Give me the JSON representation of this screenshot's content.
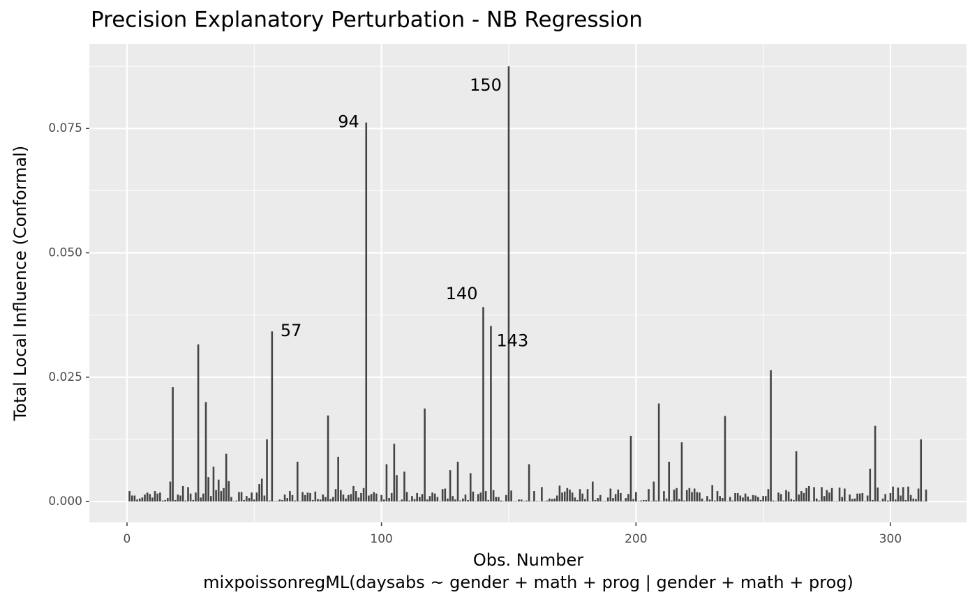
{
  "chart_data": {
    "type": "bar",
    "title": "Precision Explanatory Perturbation - NB Regression",
    "x_label": "Obs. Number",
    "caption": "mixpoissonregML(daysabs ~ gender + math + prog | gender + math + prog)",
    "y_label": "Total Local Influence (Conformal)",
    "color": "#444444",
    "grid": true,
    "xlim": [
      -14.8,
      329.9
    ],
    "ylim": [
      -0.0042,
      0.092
    ],
    "xticks": [
      0,
      100,
      200,
      300
    ],
    "yticks": [
      {
        "value": 0,
        "label": "0.000"
      },
      0.025,
      {
        "value": 0.05,
        "label": "0.050"
      },
      0.075
    ],
    "labels": [
      {
        "text": "57",
        "x": 57
      },
      {
        "text": "94",
        "x": 94
      },
      {
        "text": "140",
        "x": 140
      },
      {
        "text": "143",
        "x": 143
      },
      {
        "text": "150",
        "x": 150
      }
    ],
    "x": [
      1,
      2,
      3,
      4,
      5,
      6,
      7,
      8,
      9,
      10,
      11,
      12,
      13,
      14,
      15,
      16,
      17,
      18,
      19,
      20,
      21,
      22,
      23,
      24,
      25,
      26,
      27,
      28,
      29,
      30,
      31,
      32,
      33,
      34,
      35,
      36,
      37,
      38,
      39,
      40,
      41,
      42,
      43,
      44,
      45,
      46,
      47,
      48,
      49,
      50,
      51,
      52,
      53,
      54,
      55,
      56,
      57,
      58,
      59,
      60,
      61,
      62,
      63,
      64,
      65,
      66,
      67,
      68,
      69,
      70,
      71,
      72,
      73,
      74,
      75,
      76,
      77,
      78,
      79,
      80,
      81,
      82,
      83,
      84,
      85,
      86,
      87,
      88,
      89,
      90,
      91,
      92,
      93,
      94,
      95,
      96,
      97,
      98,
      99,
      100,
      101,
      102,
      103,
      104,
      105,
      106,
      107,
      108,
      109,
      110,
      111,
      112,
      113,
      114,
      115,
      116,
      117,
      118,
      119,
      120,
      121,
      122,
      123,
      124,
      125,
      126,
      127,
      128,
      129,
      130,
      131,
      132,
      133,
      134,
      135,
      136,
      137,
      138,
      139,
      140,
      141,
      142,
      143,
      144,
      145,
      146,
      147,
      148,
      149,
      150,
      151,
      152,
      153,
      154,
      155,
      156,
      157,
      158,
      159,
      160,
      161,
      162,
      163,
      164,
      165,
      166,
      167,
      168,
      169,
      170,
      171,
      172,
      173,
      174,
      175,
      176,
      177,
      178,
      179,
      180,
      181,
      182,
      183,
      184,
      185,
      186,
      187,
      188,
      189,
      190,
      191,
      192,
      193,
      194,
      195,
      196,
      197,
      198,
      199,
      200,
      201,
      202,
      203,
      204,
      205,
      206,
      207,
      208,
      209,
      210,
      211,
      212,
      213,
      214,
      215,
      216,
      217,
      218,
      219,
      220,
      221,
      222,
      223,
      224,
      225,
      226,
      227,
      228,
      229,
      230,
      231,
      232,
      233,
      234,
      235,
      236,
      237,
      238,
      239,
      240,
      241,
      242,
      243,
      244,
      245,
      246,
      247,
      248,
      249,
      250,
      251,
      252,
      253,
      254,
      255,
      256,
      257,
      258,
      259,
      260,
      261,
      262,
      263,
      264,
      265,
      266,
      267,
      268,
      269,
      270,
      271,
      272,
      273,
      274,
      275,
      276,
      277,
      278,
      279,
      280,
      281,
      282,
      283,
      284,
      285,
      286,
      287,
      288,
      289,
      290,
      291,
      292,
      293,
      294,
      295,
      296,
      297,
      298,
      299,
      300,
      301,
      302,
      303,
      304,
      305,
      306,
      307,
      308,
      309,
      310,
      311,
      312,
      313,
      314
    ],
    "values": [
      0.0021,
      0.0012,
      0.0012,
      0.0004,
      0.0006,
      0.0008,
      0.0014,
      0.0018,
      0.0015,
      0.0008,
      0.0021,
      0.0016,
      0.0018,
      0.0002,
      0.0003,
      0.0007,
      0.004,
      0.023,
      0.0003,
      0.0014,
      0.0012,
      0.0031,
      0.0002,
      0.0029,
      0.0016,
      0.0003,
      0.0018,
      0.0316,
      0.0008,
      0.0016,
      0.02,
      0.0049,
      0.0011,
      0.007,
      0.0023,
      0.0044,
      0.0021,
      0.0027,
      0.0096,
      0.0041,
      0.0009,
      0.0001,
      0.0002,
      0.0019,
      0.0019,
      0.0003,
      0.0011,
      0.0007,
      0.0018,
      0.0004,
      0.0018,
      0.0035,
      0.0046,
      0.0012,
      0.0125,
      0.0002,
      0.0342,
      0.0001,
      0.0001,
      0.0004,
      0.0003,
      0.0014,
      0.0007,
      0.0021,
      0.0013,
      0.0002,
      0.008,
      0.0001,
      0.0019,
      0.0013,
      0.0018,
      0.0017,
      0.0003,
      0.002,
      0.0005,
      0.0004,
      0.0014,
      0.0009,
      0.0173,
      0.0005,
      0.0009,
      0.0025,
      0.009,
      0.0023,
      0.0014,
      0.0006,
      0.0013,
      0.0015,
      0.0031,
      0.0021,
      0.0008,
      0.0017,
      0.0027,
      0.0762,
      0.0012,
      0.0015,
      0.0019,
      0.0016,
      0.0001,
      0.0013,
      0.0004,
      0.0075,
      0.0007,
      0.0017,
      0.0116,
      0.0053,
      0.0001,
      0.0004,
      0.006,
      0.0019,
      0.0002,
      0.0011,
      0.0005,
      0.0017,
      0.0009,
      0.0015,
      0.0187,
      0.0004,
      0.0011,
      0.0018,
      0.0016,
      0.0009,
      0.0001,
      0.0025,
      0.0026,
      0.0006,
      0.0063,
      0.0011,
      0.0004,
      0.008,
      0.0002,
      0.0006,
      0.0014,
      0.0003,
      0.0057,
      0.002,
      0.0001,
      0.0015,
      0.0018,
      0.0391,
      0.0021,
      0.0003,
      0.0353,
      0.0023,
      0.0009,
      0.0009,
      0.0002,
      0.0001,
      0.0013,
      0.0875,
      0.0022,
      0.0001,
      0.0001,
      0.0004,
      0.0004,
      0.0001,
      0.0002,
      0.0075,
      0.0001,
      0.0021,
      0.0001,
      0.0001,
      0.0029,
      0.0001,
      0.0002,
      0.0006,
      0.0005,
      0.0006,
      0.0012,
      0.0032,
      0.0018,
      0.002,
      0.0027,
      0.0024,
      0.0018,
      0.0008,
      0.0003,
      0.0025,
      0.0016,
      0.0005,
      0.0025,
      0.0001,
      0.004,
      0.0003,
      0.0007,
      0.0013,
      0.0001,
      0.0001,
      0.0008,
      0.0026,
      0.0007,
      0.0015,
      0.0024,
      0.0017,
      0.0001,
      0.0007,
      0.0015,
      0.0132,
      0.0005,
      0.0019,
      0.0001,
      0.0002,
      0.0003,
      0.0003,
      0.0025,
      0.0001,
      0.004,
      0.0002,
      0.0197,
      0.0001,
      0.0021,
      0.0006,
      0.008,
      0.0002,
      0.0024,
      0.0027,
      0.0005,
      0.0119,
      0.0002,
      0.0023,
      0.0027,
      0.0019,
      0.0026,
      0.0019,
      0.0018,
      0.0006,
      0.0001,
      0.0011,
      0.0004,
      0.0033,
      0.0002,
      0.0021,
      0.0011,
      0.0007,
      0.0172,
      0.0001,
      0.0009,
      0.0002,
      0.0017,
      0.0017,
      0.0012,
      0.0008,
      0.0016,
      0.001,
      0.0004,
      0.0013,
      0.0012,
      0.0009,
      0.0003,
      0.0011,
      0.0011,
      0.0025,
      0.0264,
      0.0002,
      0.0001,
      0.0018,
      0.0015,
      0.0002,
      0.0023,
      0.002,
      0.0005,
      0.0003,
      0.0101,
      0.0014,
      0.0021,
      0.0017,
      0.0027,
      0.0031,
      0.0001,
      0.0029,
      0.0006,
      0.0002,
      0.0029,
      0.0011,
      0.0023,
      0.0018,
      0.0027,
      0.0001,
      0.0001,
      0.0028,
      0.0009,
      0.0026,
      0.0001,
      0.0014,
      0.0005,
      0.0006,
      0.0016,
      0.0016,
      0.0017,
      0.0001,
      0.0012,
      0.0066,
      0.0003,
      0.0152,
      0.0028,
      0.0001,
      0.0006,
      0.0015,
      0.0002,
      0.0017,
      0.003,
      0.0004,
      0.0028,
      0.0012,
      0.0029,
      0.0003,
      0.003,
      0.0013,
      0.0006,
      0.0005,
      0.0026,
      0.0125,
      0.0001,
      0.0024
    ]
  }
}
